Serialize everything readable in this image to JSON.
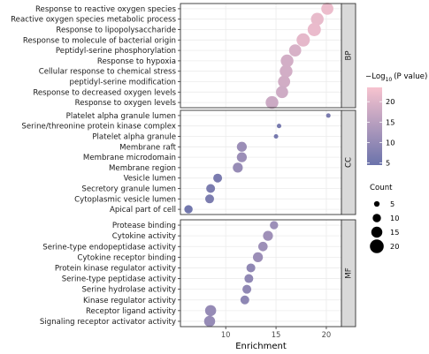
{
  "chart_data": {
    "type": "scatter",
    "xlabel": "Enrichment",
    "xlim": [
      5.5,
      21.5
    ],
    "x_ticks": [
      10,
      15,
      20
    ],
    "color_legend_title": "−Log",
    "color_legend_sub": "10",
    "color_legend_suffix": "(P value)",
    "color_legend_ticks": [
      5,
      10,
      15,
      20
    ],
    "color_range": [
      4.5,
      23.5
    ],
    "color_low": "#6b73ab",
    "color_high": "#f7c3cf",
    "size_legend_title": "Count",
    "size_legend_values": [
      5,
      10,
      15,
      20
    ],
    "panels": [
      {
        "name": "BP",
        "terms": [
          {
            "label": "Response to reactive oxygen species",
            "x": 20.1,
            "p": 22.0,
            "count": 17
          },
          {
            "label": "Reactive oxygen species metabolic process",
            "x": 19.1,
            "p": 21.5,
            "count": 18
          },
          {
            "label": "Response to lipopolysaccharide",
            "x": 18.8,
            "p": 21.7,
            "count": 19
          },
          {
            "label": "Response to molecule of bacterial origin",
            "x": 17.7,
            "p": 21.0,
            "count": 19
          },
          {
            "label": "Peptidyl-serine phosphorylation",
            "x": 16.9,
            "p": 19.2,
            "count": 17
          },
          {
            "label": "Response to hypoxia",
            "x": 16.1,
            "p": 18.5,
            "count": 18
          },
          {
            "label": "Cellular response to chemical stress",
            "x": 16.0,
            "p": 18.5,
            "count": 18
          },
          {
            "label": "peptidyl-serine modification",
            "x": 15.8,
            "p": 18.3,
            "count": 17
          },
          {
            "label": "Response to decreased oxygen levels",
            "x": 15.6,
            "p": 18.0,
            "count": 17
          },
          {
            "label": "Response to oxygen levels",
            "x": 14.6,
            "p": 17.5,
            "count": 18
          }
        ]
      },
      {
        "name": "CC",
        "terms": [
          {
            "label": "Platelet alpha granule lumen",
            "x": 20.2,
            "p": 6.5,
            "count": 3
          },
          {
            "label": "Serine/threonine protein kinase complex",
            "x": 15.3,
            "p": 6.0,
            "count": 3
          },
          {
            "label": "Platelet alpha granule",
            "x": 15.0,
            "p": 6.0,
            "count": 3
          },
          {
            "label": "Membrane raft",
            "x": 11.6,
            "p": 11.0,
            "count": 13
          },
          {
            "label": "Membrane microdomain",
            "x": 11.6,
            "p": 11.0,
            "count": 13
          },
          {
            "label": "Membrane region",
            "x": 11.2,
            "p": 10.5,
            "count": 13
          },
          {
            "label": "Vesicle lumen",
            "x": 9.2,
            "p": 6.5,
            "count": 11
          },
          {
            "label": "Secretory granule lumen",
            "x": 8.5,
            "p": 6.8,
            "count": 11
          },
          {
            "label": "Cytoplasmic vesicle lumen",
            "x": 8.4,
            "p": 6.8,
            "count": 11
          },
          {
            "label": "Apical part of cell",
            "x": 6.3,
            "p": 5.5,
            "count": 10
          }
        ]
      },
      {
        "name": "MF",
        "terms": [
          {
            "label": "Protease binding",
            "x": 14.8,
            "p": 11.2,
            "count": 10
          },
          {
            "label": "Cytokine activity",
            "x": 14.2,
            "p": 11.5,
            "count": 13
          },
          {
            "label": "Serine-type endopeptidase activity",
            "x": 13.7,
            "p": 11.3,
            "count": 12
          },
          {
            "label": "Cytokine receptor binding",
            "x": 13.2,
            "p": 11.0,
            "count": 13
          },
          {
            "label": "Protein kinase regulator activity",
            "x": 12.5,
            "p": 9.5,
            "count": 11
          },
          {
            "label": "Serine-type peptidase activity",
            "x": 12.3,
            "p": 9.5,
            "count": 11
          },
          {
            "label": "Serine hydrolase activity",
            "x": 12.1,
            "p": 9.5,
            "count": 11
          },
          {
            "label": "Kinase regulator activity",
            "x": 11.9,
            "p": 9.3,
            "count": 11
          },
          {
            "label": "Receptor ligand activity",
            "x": 8.5,
            "p": 10.3,
            "count": 15
          },
          {
            "label": "Signaling receptor activator activity",
            "x": 8.4,
            "p": 10.3,
            "count": 15
          }
        ]
      }
    ]
  }
}
